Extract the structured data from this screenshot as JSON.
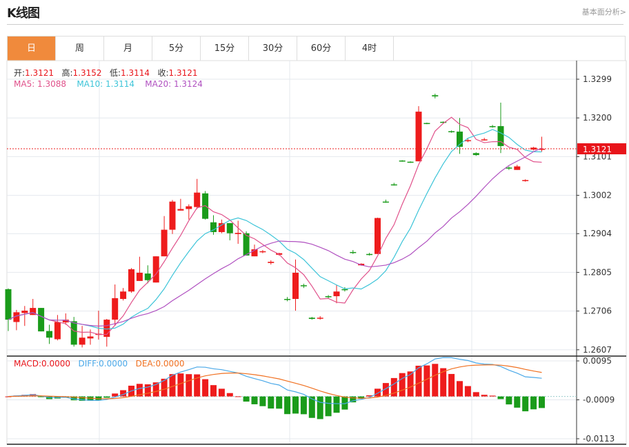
{
  "header": {
    "title": "K线图",
    "link": "基本面分析>"
  },
  "tabs": [
    {
      "label": "日",
      "active": true
    },
    {
      "label": "周"
    },
    {
      "label": "月"
    },
    {
      "label": "5分"
    },
    {
      "label": "15分"
    },
    {
      "label": "30分"
    },
    {
      "label": "60分"
    },
    {
      "label": "4时"
    }
  ],
  "ohlc_legend": {
    "open_label": "开:",
    "open": "1.3121",
    "high_label": "高:",
    "high": "1.3152",
    "low_label": "低:",
    "low": "1.3114",
    "close_label": "收:",
    "close": "1.3121"
  },
  "ma_legend": {
    "ma5": "MA5: 1.3088",
    "ma10": "MA10: 1.3114",
    "ma20": "MA20: 1.3124"
  },
  "macd_legend": {
    "macd": "MACD:0.0000",
    "diff": "DIFF:0.0000",
    "dea": "DEA:0.0000"
  },
  "price_axis": [
    "1.3299",
    "1.3200",
    "1.3101",
    "1.3002",
    "1.2904",
    "1.2805",
    "1.2706",
    "1.2607"
  ],
  "macd_axis": [
    "0.0095",
    "-0.0009",
    "-0.0113"
  ],
  "current_price": "1.3121",
  "colors": {
    "up": "#ee1c1c",
    "down": "#1a9b1a",
    "ma5": "#e0508a",
    "ma10": "#3cc4d8",
    "ma20": "#b050c0",
    "diff": "#4aa8e8",
    "dea": "#f07020",
    "accent": "#f08a3c"
  },
  "chart_data": {
    "type": "candlestick",
    "ylim": [
      1.259,
      1.333
    ],
    "macd_ylim": [
      -0.0113,
      0.0095
    ],
    "candles": [
      [
        1.2762,
        1.2764,
        1.2655,
        1.2684
      ],
      [
        1.2678,
        1.2709,
        1.2657,
        1.2703
      ],
      [
        1.2701,
        1.2719,
        1.2668,
        1.2707
      ],
      [
        1.2696,
        1.2737,
        1.2696,
        1.2714
      ],
      [
        1.2714,
        1.2714,
        1.2654,
        1.2654
      ],
      [
        1.2655,
        1.2671,
        1.2622,
        1.2638
      ],
      [
        1.2634,
        1.2696,
        1.2631,
        1.2678
      ],
      [
        1.2677,
        1.27,
        1.2671,
        1.2684
      ],
      [
        1.268,
        1.2691,
        1.2615,
        1.262
      ],
      [
        1.262,
        1.2668,
        1.2613,
        1.2638
      ],
      [
        1.2636,
        1.2659,
        1.262,
        1.2641
      ],
      [
        1.2645,
        1.2707,
        1.2633,
        1.2648
      ],
      [
        1.264,
        1.2686,
        1.2615,
        1.2684
      ],
      [
        1.2684,
        1.2774,
        1.2668,
        1.2739
      ],
      [
        1.2737,
        1.2765,
        1.2733,
        1.2756
      ],
      [
        1.2756,
        1.2816,
        1.2753,
        1.2813
      ],
      [
        1.2783,
        1.2845,
        1.2783,
        1.2804
      ],
      [
        1.2802,
        1.2823,
        1.2777,
        1.2785
      ],
      [
        1.2779,
        1.2846,
        1.2779,
        1.2846
      ],
      [
        1.2846,
        1.2949,
        1.2846,
        1.2914
      ],
      [
        1.2914,
        1.299,
        1.2903,
        1.2986
      ],
      [
        1.2963,
        1.2993,
        1.2963,
        1.2967
      ],
      [
        1.2967,
        1.2979,
        1.294,
        1.2974
      ],
      [
        1.2972,
        1.3044,
        1.2967,
        1.3009
      ],
      [
        1.3007,
        1.3013,
        1.294,
        1.2942
      ],
      [
        1.2933,
        1.2951,
        1.2901,
        1.2908
      ],
      [
        1.2908,
        1.294,
        1.2905,
        1.2931
      ],
      [
        1.2931,
        1.2931,
        1.2887,
        1.2905
      ],
      [
        1.2903,
        1.2937,
        1.2878,
        1.2906
      ],
      [
        1.2905,
        1.291,
        1.2848,
        1.2848
      ],
      [
        1.2846,
        1.2876,
        1.2846,
        1.2864
      ],
      [
        1.2857,
        1.2862,
        1.2854,
        1.2859
      ],
      [
        1.2829,
        1.2836,
        1.2825,
        1.2832
      ],
      [
        1.285,
        1.2855,
        1.2848,
        1.2854
      ],
      [
        1.2737,
        1.2742,
        1.2731,
        1.2735
      ],
      [
        1.2737,
        1.2838,
        1.2707,
        1.2804
      ],
      [
        1.2772,
        1.2776,
        1.2765,
        1.277
      ],
      [
        1.2689,
        1.2691,
        1.2684,
        1.2686
      ],
      [
        1.2688,
        1.2693,
        1.2684,
        1.2689
      ],
      [
        1.2744,
        1.2747,
        1.2739,
        1.2742
      ],
      [
        1.2744,
        1.2772,
        1.2726,
        1.2756
      ],
      [
        1.2762,
        1.2767,
        1.2756,
        1.276
      ],
      [
        1.2857,
        1.2862,
        1.2852,
        1.2855
      ],
      [
        1.2823,
        1.2828,
        1.2822,
        1.2827
      ],
      [
        1.2852,
        1.2855,
        1.2848,
        1.285
      ],
      [
        1.2852,
        1.2945,
        1.2852,
        1.2944
      ],
      [
        1.2986,
        1.2991,
        1.2983,
        1.2984
      ],
      [
        1.303,
        1.3034,
        1.3027,
        1.3029
      ],
      [
        1.3091,
        1.3092,
        1.3088,
        1.3089
      ],
      [
        1.3088,
        1.3089,
        1.3085,
        1.3086
      ],
      [
        1.3089,
        1.323,
        1.3089,
        1.3216
      ],
      [
        1.3187,
        1.3188,
        1.3184,
        1.3185
      ],
      [
        1.3258,
        1.3262,
        1.325,
        1.3255
      ],
      [
        1.319,
        1.3191,
        1.3187,
        1.3188
      ],
      [
        1.3166,
        1.3168,
        1.3162,
        1.3164
      ],
      [
        1.3165,
        1.32,
        1.3108,
        1.3126
      ],
      [
        1.3142,
        1.3147,
        1.3138,
        1.3143
      ],
      [
        1.311,
        1.3112,
        1.3103,
        1.3105
      ],
      [
        1.3143,
        1.3149,
        1.3142,
        1.3145
      ],
      [
        1.3179,
        1.3182,
        1.3175,
        1.3177
      ],
      [
        1.3179,
        1.3239,
        1.311,
        1.3128
      ],
      [
        1.3073,
        1.3076,
        1.3067,
        1.3071
      ],
      [
        1.3067,
        1.308,
        1.3067,
        1.3076
      ],
      [
        1.3039,
        1.3043,
        1.3037,
        1.3041
      ],
      [
        1.3119,
        1.3126,
        1.3117,
        1.3124
      ],
      [
        1.3121,
        1.3152,
        1.3114,
        1.3121
      ]
    ],
    "candle_fields": [
      "open",
      "high",
      "low",
      "close"
    ],
    "indicators": [
      "MA5",
      "MA10",
      "MA20",
      "MACD(12,26,9)"
    ]
  }
}
